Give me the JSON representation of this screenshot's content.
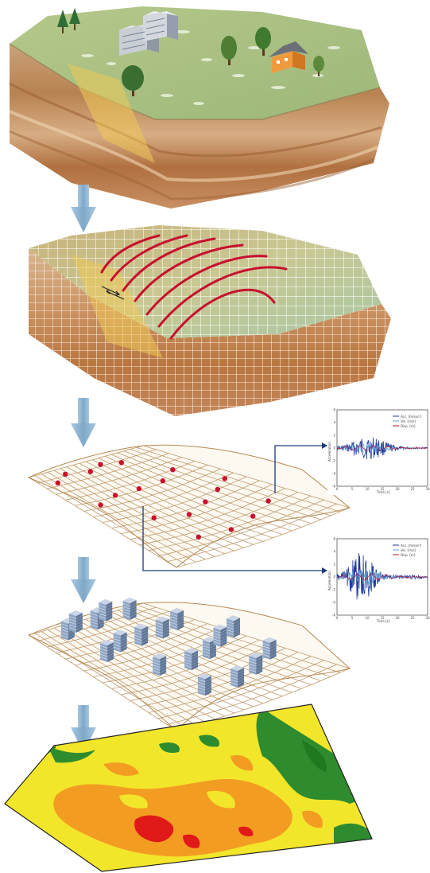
{
  "diagram": {
    "steps": [
      "terrain-block",
      "meshed-model-with-wavefronts",
      "ground-surface-stations",
      "buildings-on-surface",
      "damage-map"
    ],
    "chart1": {
      "legend": [
        "Acc. [m/sec²]",
        "Vel. [m/s]",
        "Disp. [m]"
      ],
      "ylabel": "Acceleration",
      "xlabel": "Time [s]",
      "yticks": [
        "6",
        "4",
        "2",
        "0",
        "-2",
        "-4",
        "-6"
      ],
      "xticks": [
        "0",
        "5",
        "10",
        "15",
        "20",
        "25",
        "30"
      ]
    },
    "chart2": {
      "legend": [
        "Acc. [m/sec²]",
        "Vel. [m/s]",
        "Disp. [m]"
      ],
      "ylabel": "Acceleration",
      "xlabel": "Time [s]",
      "yticks": [
        "6",
        "4",
        "2",
        "0",
        "-2",
        "-4",
        "-6"
      ],
      "xticks": [
        "0",
        "5",
        "10",
        "15",
        "20",
        "25",
        "30"
      ]
    },
    "colors": {
      "arrow": "#8db3d0",
      "soil_top": "#a9c27d",
      "soil_brown": "#c7925a",
      "fault": "#e9c75a",
      "wave": "#c8102e",
      "station": "#c8102e",
      "mesh": "#b58a55",
      "building": "#7f98b8",
      "map_green": "#2e8b2e",
      "map_yellow": "#f2e62a",
      "map_orange": "#f39c22",
      "map_red": "#e01919",
      "link_line": "#1f3a78"
    }
  }
}
